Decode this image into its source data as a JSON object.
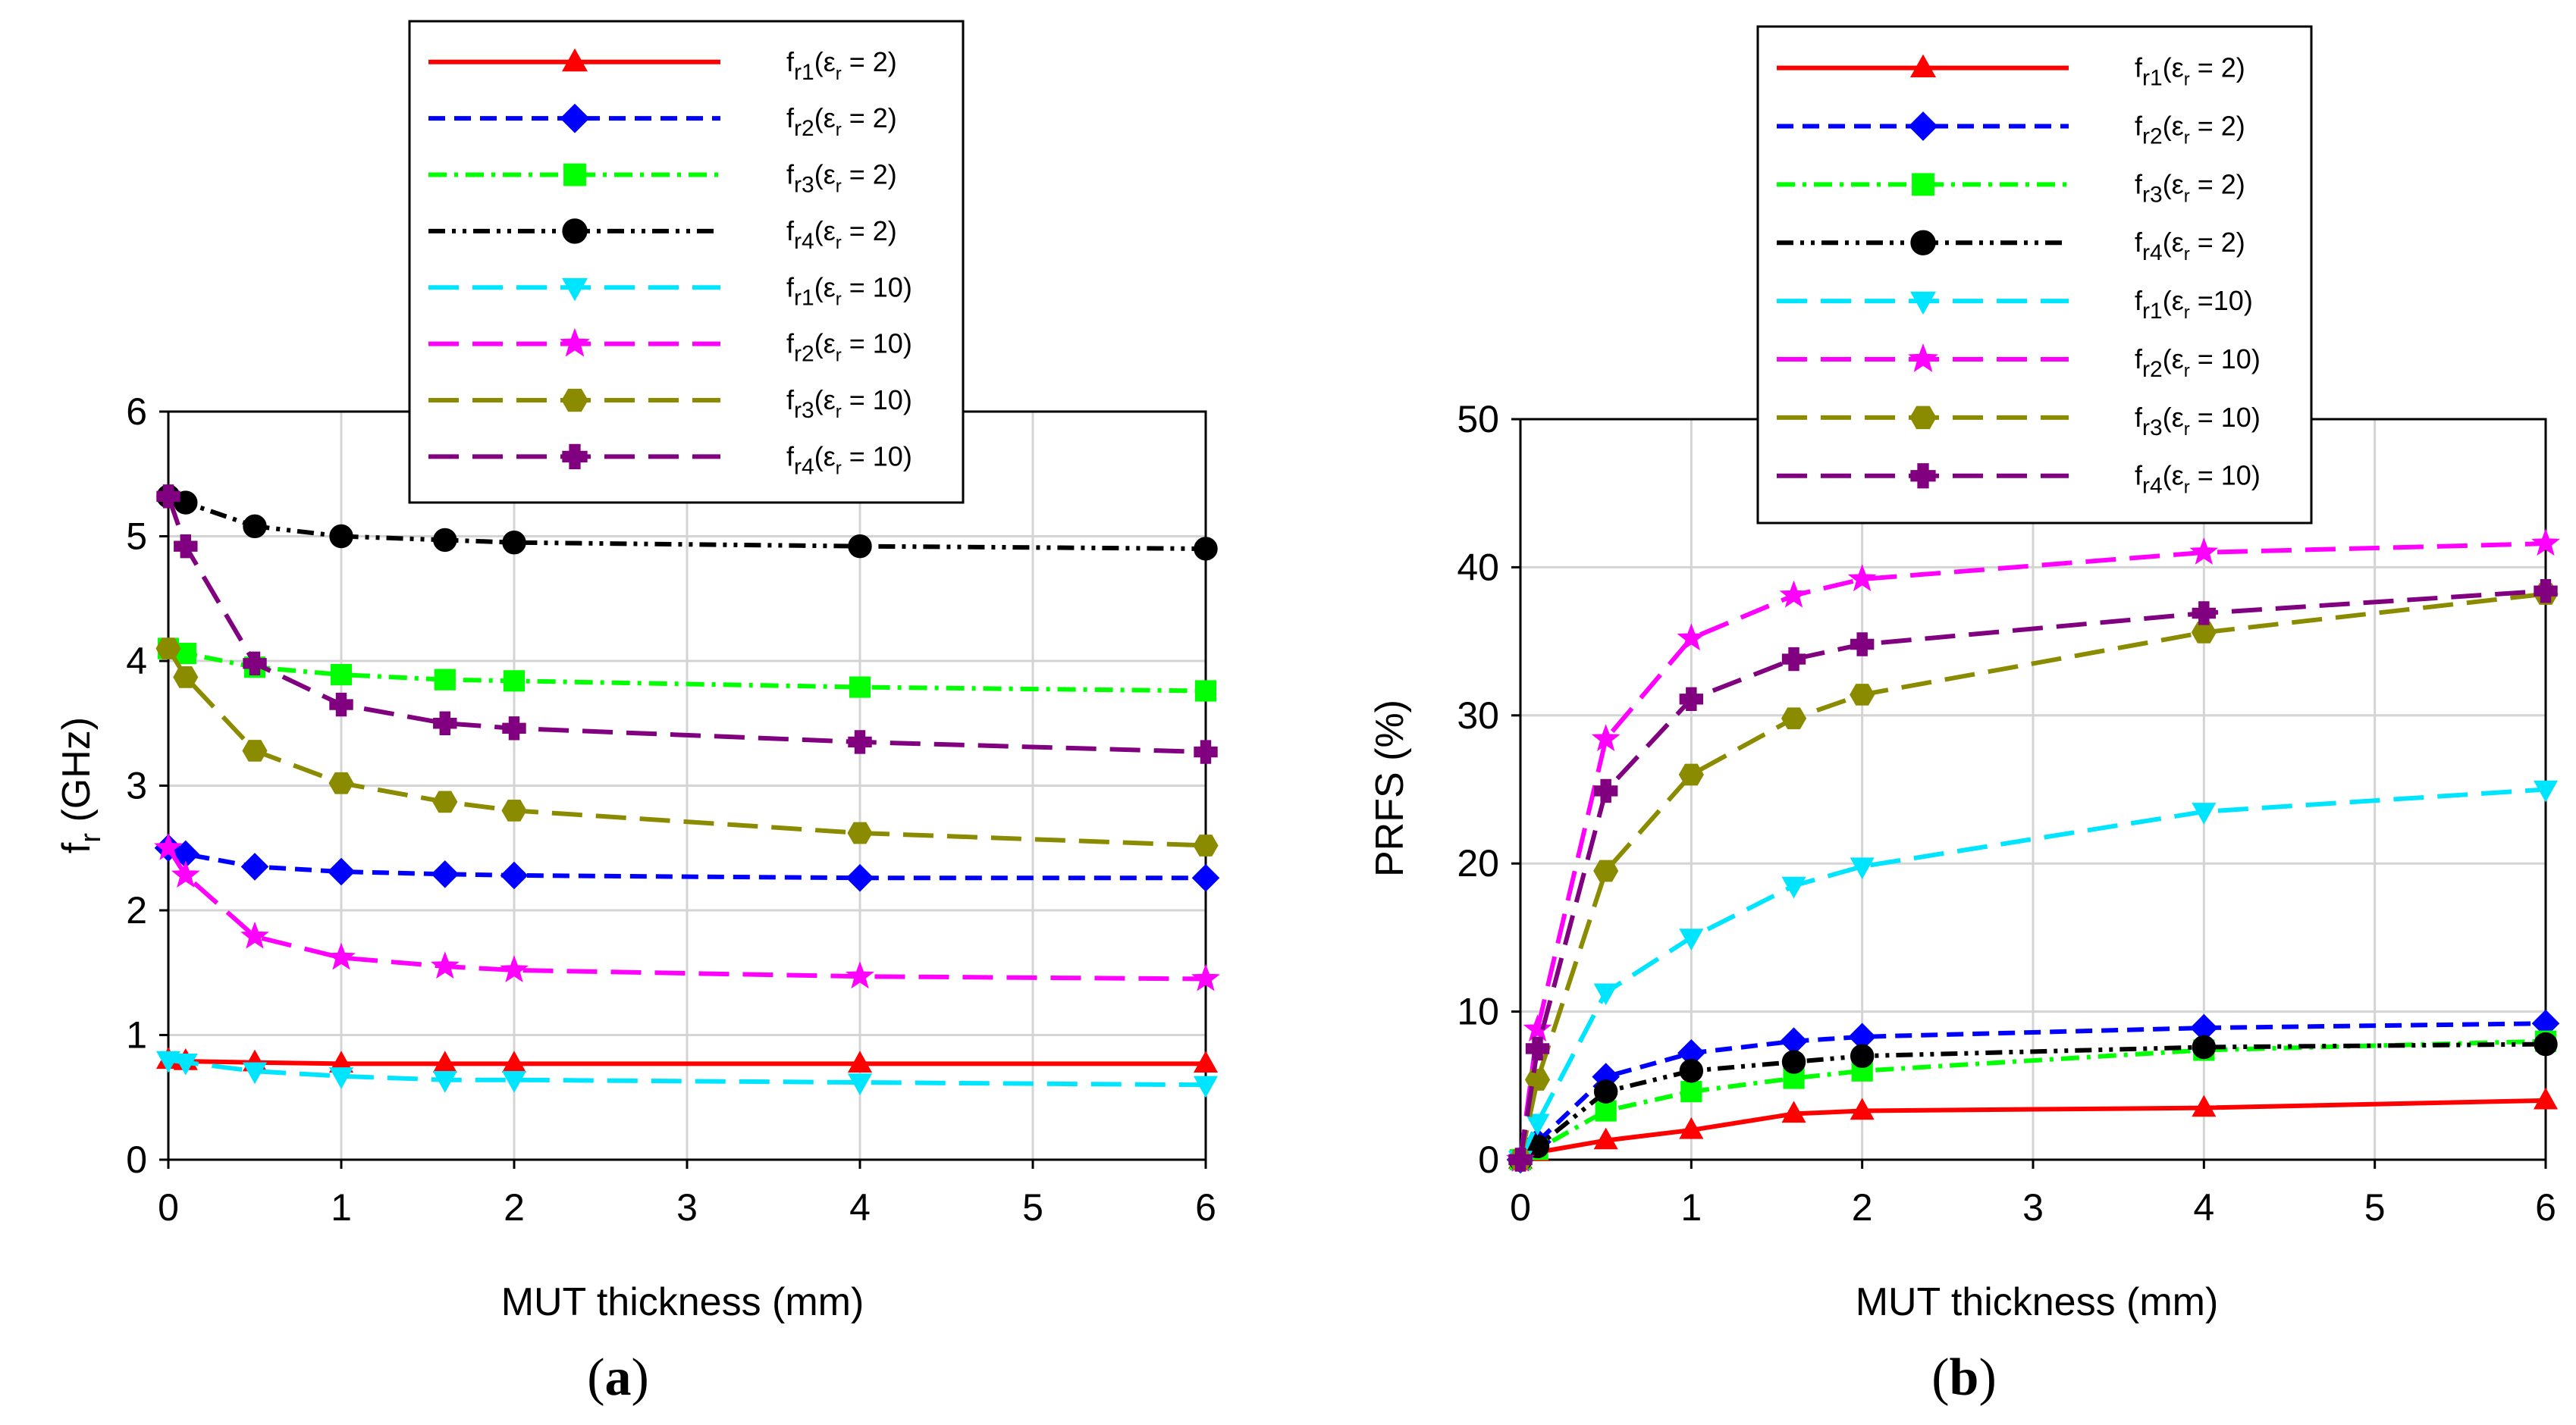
{
  "chart_data": [
    {
      "panel": "a",
      "type": "line",
      "title": "",
      "xlabel": "MUT thickness (mm)",
      "ylabel_main": "f",
      "ylabel_sub": "r",
      "ylabel_unit": " (GHz)",
      "xlim": [
        0,
        6
      ],
      "ylim": [
        0,
        6
      ],
      "xticks": [
        0,
        1,
        2,
        3,
        4,
        5,
        6
      ],
      "yticks": [
        0,
        1,
        2,
        3,
        4,
        5,
        6
      ],
      "grid": true,
      "legend_position": "top-center",
      "caption_open": "(",
      "caption_letter": "a",
      "caption_close": ")",
      "x": [
        0,
        0.1,
        0.5,
        1,
        1.6,
        2,
        4,
        6
      ],
      "series": [
        {
          "name": "fr1(εr = 2)",
          "label_main": "f",
          "label_sub": "r1",
          "label_eps": "(ε",
          "label_eps_sub": "r",
          "label_rest": " = 2)",
          "color": "#ff0000",
          "dash": "solid",
          "marker": "triangle-up",
          "values": [
            0.8,
            0.79,
            0.78,
            0.77,
            0.77,
            0.77,
            0.77,
            0.77
          ]
        },
        {
          "name": "fr2(εr = 2)",
          "label_main": "f",
          "label_sub": "r2",
          "label_eps": "(ε",
          "label_eps_sub": "r",
          "label_rest": " = 2)",
          "color": "#0000ff",
          "dash": "dashed",
          "marker": "diamond",
          "values": [
            2.5,
            2.45,
            2.35,
            2.31,
            2.29,
            2.28,
            2.26,
            2.26
          ]
        },
        {
          "name": "fr3(εr = 2)",
          "label_main": "f",
          "label_sub": "r3",
          "label_eps": "(ε",
          "label_eps_sub": "r",
          "label_rest": " = 2)",
          "color": "#00ff00",
          "dash": "dashdot",
          "marker": "square",
          "values": [
            4.1,
            4.06,
            3.95,
            3.89,
            3.85,
            3.84,
            3.79,
            3.76
          ]
        },
        {
          "name": "fr4(εr = 2)",
          "label_main": "f",
          "label_sub": "r4",
          "label_eps": "(ε",
          "label_eps_sub": "r",
          "label_rest": " = 2)",
          "color": "#000000",
          "dash": "dashdotdot",
          "marker": "circle",
          "values": [
            5.32,
            5.27,
            5.08,
            5.0,
            4.97,
            4.95,
            4.92,
            4.9
          ]
        },
        {
          "name": "fr1(εr = 10)",
          "label_main": "f",
          "label_sub": "r1",
          "label_eps": "(ε",
          "label_eps_sub": "r",
          "label_rest": " = 10)",
          "color": "#00e5ff",
          "dash": "longdash",
          "marker": "triangle-down",
          "values": [
            0.8,
            0.78,
            0.71,
            0.67,
            0.64,
            0.64,
            0.62,
            0.6
          ]
        },
        {
          "name": "fr2(εr = 10)",
          "label_main": "f",
          "label_sub": "r2",
          "label_eps": "(ε",
          "label_eps_sub": "r",
          "label_rest": " = 10)",
          "color": "#ff00ff",
          "dash": "longdash",
          "marker": "star",
          "values": [
            2.5,
            2.28,
            1.79,
            1.62,
            1.55,
            1.52,
            1.47,
            1.45
          ]
        },
        {
          "name": "fr3(εr = 10)",
          "label_main": "f",
          "label_sub": "r3",
          "label_eps": "(ε",
          "label_eps_sub": "r",
          "label_rest": " = 10)",
          "color": "#8b8b00",
          "dash": "longdash",
          "marker": "hexagon",
          "values": [
            4.1,
            3.87,
            3.28,
            3.02,
            2.87,
            2.8,
            2.62,
            2.52
          ]
        },
        {
          "name": "fr4(εr = 10)",
          "label_main": "f",
          "label_sub": "r4",
          "label_eps": "(ε",
          "label_eps_sub": "r",
          "label_rest": " = 10)",
          "color": "#800080",
          "dash": "longdash",
          "marker": "plus",
          "values": [
            5.32,
            4.92,
            3.98,
            3.65,
            3.5,
            3.46,
            3.35,
            3.27
          ]
        }
      ]
    },
    {
      "panel": "b",
      "type": "line",
      "title": "",
      "xlabel": "MUT thickness (mm)",
      "ylabel_main": "PRFS (%)",
      "ylabel_sub": "",
      "ylabel_unit": "",
      "xlim": [
        0,
        6
      ],
      "ylim": [
        0,
        50
      ],
      "xticks": [
        0,
        1,
        2,
        3,
        4,
        5,
        6
      ],
      "yticks": [
        0,
        10,
        20,
        30,
        40,
        50
      ],
      "grid": true,
      "legend_position": "top-center",
      "caption_open": "(",
      "caption_letter": "b",
      "caption_close": ")",
      "x": [
        0,
        0.1,
        0.5,
        1,
        1.6,
        2,
        4,
        6
      ],
      "series": [
        {
          "name": "fr1(εr = 2)",
          "label_main": "f",
          "label_sub": "r1",
          "label_eps": "(ε",
          "label_eps_sub": "r",
          "label_rest": " = 2)",
          "color": "#ff0000",
          "dash": "solid",
          "marker": "triangle-up",
          "values": [
            0,
            0.5,
            1.3,
            2.0,
            3.1,
            3.3,
            3.5,
            4.0
          ]
        },
        {
          "name": "fr2(εr = 2)",
          "label_main": "f",
          "label_sub": "r2",
          "label_eps": "(ε",
          "label_eps_sub": "r",
          "label_rest": " = 2)",
          "color": "#0000ff",
          "dash": "dashed",
          "marker": "diamond",
          "values": [
            0,
            1.2,
            5.6,
            7.2,
            8.0,
            8.3,
            8.9,
            9.2
          ]
        },
        {
          "name": "fr3(εr = 2)",
          "label_main": "f",
          "label_sub": "r3",
          "label_eps": "(ε",
          "label_eps_sub": "r",
          "label_rest": " = 2)",
          "color": "#00ff00",
          "dash": "dashdot",
          "marker": "square",
          "values": [
            0,
            0.7,
            3.3,
            4.6,
            5.5,
            6.0,
            7.4,
            8.0
          ]
        },
        {
          "name": "fr4(εr = 2)",
          "label_main": "f",
          "label_sub": "r4",
          "label_eps": "(ε",
          "label_eps_sub": "r",
          "label_rest": " = 2)",
          "color": "#000000",
          "dash": "dashdotdot",
          "marker": "circle",
          "values": [
            0,
            0.9,
            4.6,
            6.0,
            6.6,
            7.0,
            7.6,
            7.8
          ]
        },
        {
          "name": "fr1(εr =10)",
          "label_main": "f",
          "label_sub": "r1",
          "label_eps": "(ε",
          "label_eps_sub": "r",
          "label_rest": " =10)",
          "color": "#00e5ff",
          "dash": "longdash",
          "marker": "triangle-down",
          "values": [
            0,
            2.5,
            11.3,
            15.0,
            18.5,
            19.8,
            23.5,
            25.0
          ]
        },
        {
          "name": "fr2(εr = 10)",
          "label_main": "f",
          "label_sub": "r2",
          "label_eps": "(ε",
          "label_eps_sub": "r",
          "label_rest": " = 10)",
          "color": "#ff00ff",
          "dash": "longdash",
          "marker": "star",
          "values": [
            0,
            8.8,
            28.4,
            35.2,
            38.1,
            39.2,
            41.0,
            41.6
          ]
        },
        {
          "name": "fr3(εr = 10)",
          "label_main": "f",
          "label_sub": "r3",
          "label_eps": "(ε",
          "label_eps_sub": "r",
          "label_rest": " = 10)",
          "color": "#8b8b00",
          "dash": "longdash",
          "marker": "hexagon",
          "values": [
            0,
            5.4,
            19.5,
            26.0,
            29.8,
            31.4,
            35.6,
            38.2
          ]
        },
        {
          "name": "fr4(εr = 10)",
          "label_main": "f",
          "label_sub": "r4",
          "label_eps": "(ε",
          "label_eps_sub": "r",
          "label_rest": " = 10)",
          "color": "#800080",
          "dash": "longdash",
          "marker": "plus",
          "values": [
            0,
            7.5,
            24.9,
            31.1,
            33.8,
            34.8,
            36.9,
            38.4
          ]
        }
      ]
    }
  ]
}
